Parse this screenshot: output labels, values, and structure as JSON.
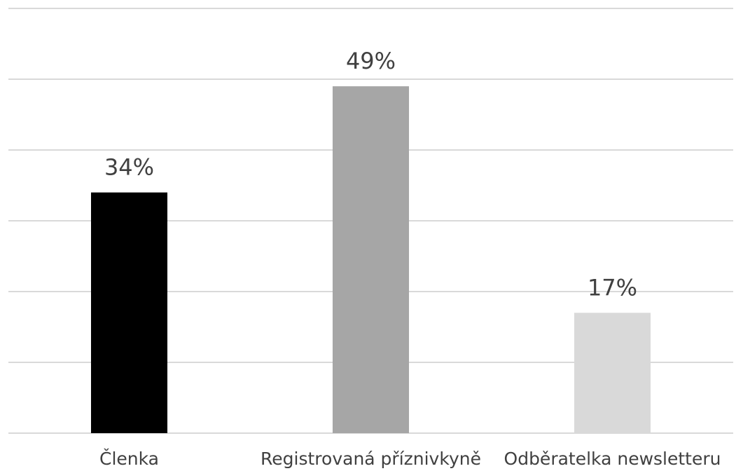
{
  "chart_data": {
    "type": "bar",
    "categories": [
      "Členka",
      "Registrovaná příznivkyně",
      "Odběratelka newsletteru"
    ],
    "values": [
      34,
      49,
      17
    ],
    "value_labels": [
      "34%",
      "49%",
      "17%"
    ],
    "colors": [
      "#000000",
      "#a6a6a6",
      "#d9d9d9"
    ],
    "ylim": [
      0,
      60
    ],
    "yticks": [
      0,
      10,
      20,
      30,
      40,
      50,
      60
    ],
    "grid": true
  }
}
